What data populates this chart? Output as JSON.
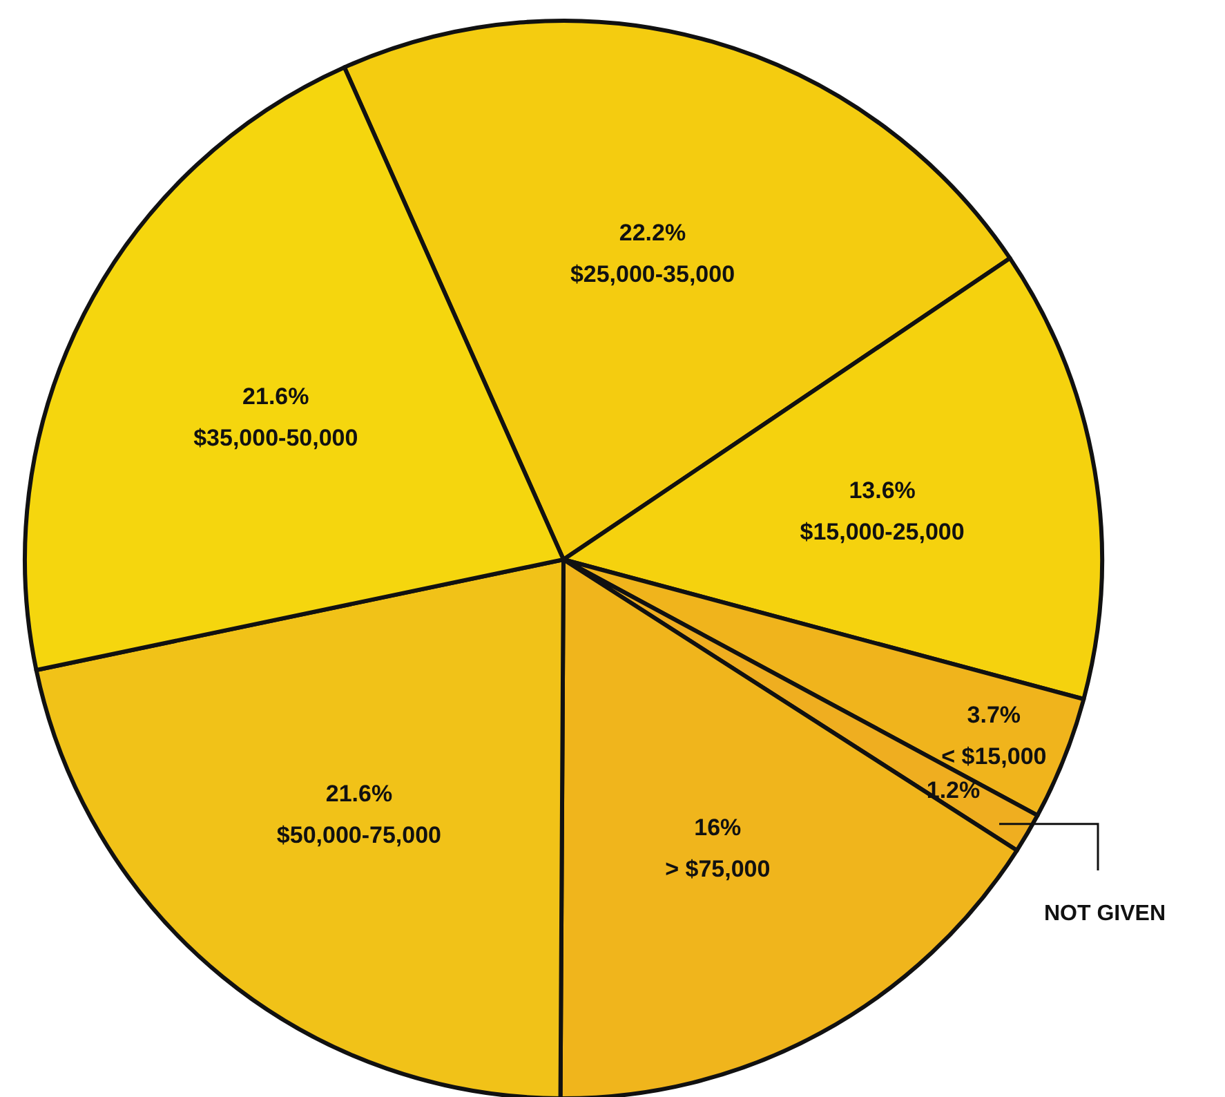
{
  "chart_data": {
    "type": "pie",
    "categories": [
      "$25,000-35,000",
      "$15,000-25,000",
      "< $15,000",
      "NOT GIVEN",
      "> $75,000",
      "$50,000-75,000",
      "$35,000-50,000"
    ],
    "values": [
      22.2,
      13.6,
      3.7,
      1.2,
      16,
      21.6,
      21.6
    ],
    "value_labels": [
      "22.2%",
      "13.6%",
      "3.7%",
      "1.2%",
      "16%",
      "21.6%",
      "21.6%"
    ],
    "colors": [
      "#f4cc10",
      "#f5d20e",
      "#f0b41c",
      "#efae20",
      "#f0b51c",
      "#f1c218",
      "#f5d60e"
    ]
  }
}
